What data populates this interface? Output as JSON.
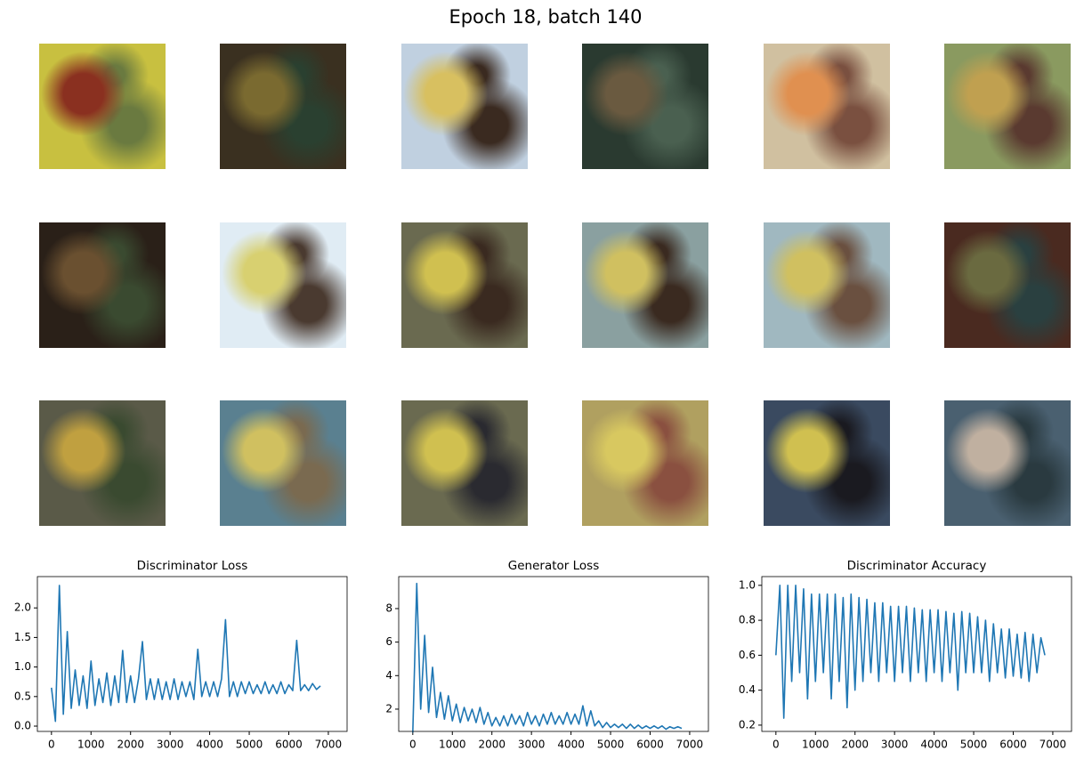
{
  "title": "Epoch 18, batch 140",
  "chart_data": [
    {
      "type": "line",
      "title": "Discriminator Loss",
      "color": "#1f77b4",
      "x": [
        0,
        100,
        200,
        300,
        400,
        500,
        600,
        700,
        800,
        900,
        1000,
        1100,
        1200,
        1300,
        1400,
        1500,
        1600,
        1700,
        1800,
        1900,
        2000,
        2100,
        2200,
        2300,
        2400,
        2500,
        2600,
        2700,
        2800,
        2900,
        3000,
        3100,
        3200,
        3300,
        3400,
        3500,
        3600,
        3700,
        3800,
        3900,
        4000,
        4100,
        4200,
        4300,
        4400,
        4500,
        4600,
        4700,
        4800,
        4900,
        5000,
        5100,
        5200,
        5300,
        5400,
        5500,
        5600,
        5700,
        5800,
        5900,
        6000,
        6100,
        6200,
        6300,
        6400,
        6500,
        6600,
        6700,
        6800
      ],
      "values": [
        0.65,
        0.08,
        2.38,
        0.2,
        1.6,
        0.3,
        0.95,
        0.35,
        0.85,
        0.3,
        1.1,
        0.35,
        0.8,
        0.4,
        0.9,
        0.35,
        0.85,
        0.4,
        1.28,
        0.4,
        0.85,
        0.4,
        0.8,
        1.43,
        0.45,
        0.8,
        0.45,
        0.8,
        0.45,
        0.75,
        0.45,
        0.8,
        0.45,
        0.75,
        0.5,
        0.75,
        0.45,
        1.3,
        0.5,
        0.75,
        0.5,
        0.75,
        0.5,
        0.8,
        1.8,
        0.5,
        0.75,
        0.5,
        0.75,
        0.55,
        0.75,
        0.55,
        0.7,
        0.55,
        0.75,
        0.55,
        0.7,
        0.55,
        0.75,
        0.55,
        0.7,
        0.6,
        1.45,
        0.6,
        0.7,
        0.6,
        0.72,
        0.62,
        0.68
      ],
      "xlim": [
        -356,
        7474
      ],
      "xticks": [
        0,
        1000,
        2000,
        3000,
        4000,
        5000,
        6000,
        7000
      ],
      "ylim": [
        -0.09,
        2.53
      ],
      "yticks": [
        {
          "value": 0,
          "label": "0.0"
        },
        0.5,
        {
          "value": 1,
          "label": "1.0"
        },
        1.5,
        {
          "value": 2,
          "label": "2.0"
        }
      ]
    },
    {
      "type": "line",
      "title": "Generator Loss",
      "color": "#1f77b4",
      "x": [
        0,
        100,
        200,
        300,
        400,
        500,
        600,
        700,
        800,
        900,
        1000,
        1100,
        1200,
        1300,
        1400,
        1500,
        1600,
        1700,
        1800,
        1900,
        2000,
        2100,
        2200,
        2300,
        2400,
        2500,
        2600,
        2700,
        2800,
        2900,
        3000,
        3100,
        3200,
        3300,
        3400,
        3500,
        3600,
        3700,
        3800,
        3900,
        4000,
        4100,
        4200,
        4300,
        4400,
        4500,
        4600,
        4700,
        4800,
        4900,
        5000,
        5100,
        5200,
        5300,
        5400,
        5500,
        5600,
        5700,
        5800,
        5900,
        6000,
        6100,
        6200,
        6300,
        6400,
        6500,
        6600,
        6700,
        6800
      ],
      "values": [
        0.6,
        9.5,
        2,
        6.4,
        1.8,
        4.5,
        1.5,
        3.0,
        1.4,
        2.8,
        1.3,
        2.3,
        1.2,
        2.1,
        1.3,
        2.0,
        1.2,
        2.1,
        1.1,
        1.8,
        1.0,
        1.5,
        1.0,
        1.6,
        1.0,
        1.7,
        1.1,
        1.6,
        1.0,
        1.8,
        1.1,
        1.6,
        1.0,
        1.7,
        1.1,
        1.8,
        1.1,
        1.6,
        1.1,
        1.8,
        1.1,
        1.7,
        1.1,
        2.2,
        1.0,
        1.9,
        1.0,
        1.3,
        0.9,
        1.2,
        0.9,
        1.1,
        0.9,
        1.1,
        0.85,
        1.1,
        0.85,
        1.05,
        0.85,
        1.0,
        0.85,
        1.0,
        0.85,
        1.0,
        0.8,
        0.95,
        0.85,
        0.95,
        0.85
      ],
      "xlim": [
        -356,
        7474
      ],
      "xticks": [
        0,
        1000,
        2000,
        3000,
        4000,
        5000,
        6000,
        7000
      ],
      "ylim": [
        0.67,
        9.91
      ],
      "yticks": [
        2,
        4,
        6,
        8
      ]
    },
    {
      "type": "line",
      "title": "Discriminator Accuracy",
      "color": "#1f77b4",
      "x": [
        0,
        100,
        200,
        300,
        400,
        500,
        600,
        700,
        800,
        900,
        1000,
        1100,
        1200,
        1300,
        1400,
        1500,
        1600,
        1700,
        1800,
        1900,
        2000,
        2100,
        2200,
        2300,
        2400,
        2500,
        2600,
        2700,
        2800,
        2900,
        3000,
        3100,
        3200,
        3300,
        3400,
        3500,
        3600,
        3700,
        3800,
        3900,
        4000,
        4100,
        4200,
        4300,
        4400,
        4500,
        4600,
        4700,
        4800,
        4900,
        5000,
        5100,
        5200,
        5300,
        5400,
        5500,
        5600,
        5700,
        5800,
        5900,
        6000,
        6100,
        6200,
        6300,
        6400,
        6500,
        6600,
        6700,
        6800
      ],
      "values": [
        0.6,
        1.0,
        0.24,
        1.0,
        0.45,
        1.0,
        0.5,
        0.98,
        0.35,
        0.95,
        0.45,
        0.95,
        0.5,
        0.95,
        0.35,
        0.95,
        0.45,
        0.93,
        0.3,
        0.95,
        0.4,
        0.93,
        0.45,
        0.92,
        0.5,
        0.9,
        0.45,
        0.9,
        0.5,
        0.88,
        0.45,
        0.88,
        0.5,
        0.88,
        0.45,
        0.87,
        0.5,
        0.86,
        0.45,
        0.86,
        0.5,
        0.86,
        0.45,
        0.85,
        0.5,
        0.84,
        0.4,
        0.85,
        0.5,
        0.84,
        0.5,
        0.82,
        0.5,
        0.8,
        0.45,
        0.78,
        0.5,
        0.75,
        0.47,
        0.75,
        0.48,
        0.72,
        0.47,
        0.73,
        0.45,
        0.72,
        0.5,
        0.7,
        0.6
      ],
      "xlim": [
        -356,
        7474
      ],
      "xticks": [
        0,
        1000,
        2000,
        3000,
        4000,
        5000,
        6000,
        7000
      ],
      "ylim": [
        0.164,
        1.05
      ],
      "yticks": [
        0.2,
        0.4,
        0.6,
        0.8,
        {
          "value": 1,
          "label": "1.0"
        }
      ]
    }
  ]
}
